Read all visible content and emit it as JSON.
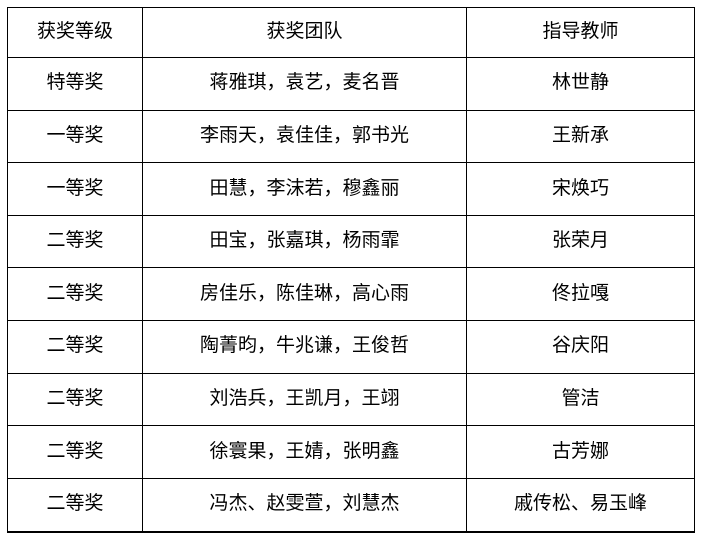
{
  "colors": {
    "background": "#ffffff",
    "border": "#000000",
    "text": "#000000"
  },
  "table": {
    "headers": [
      "获奖等级",
      "获奖团队",
      "指导教师"
    ],
    "rows": [
      {
        "level": "特等奖",
        "team": "蒋雅琪，袁艺，麦名晋",
        "teacher": "林世静"
      },
      {
        "level": "一等奖",
        "team": "李雨天，袁佳佳，郭书光",
        "teacher": "王新承"
      },
      {
        "level": "一等奖",
        "team": "田慧，李沫若，穆鑫丽",
        "teacher": "宋焕巧"
      },
      {
        "level": "二等奖",
        "team": "田宝，张嘉琪，杨雨霏",
        "teacher": "张荣月"
      },
      {
        "level": "二等奖",
        "team": "房佳乐，陈佳琳，高心雨",
        "teacher": "佟拉嘎"
      },
      {
        "level": "二等奖",
        "team": "陶菁昀，牛兆谦，王俊哲",
        "teacher": "谷庆阳"
      },
      {
        "level": "二等奖",
        "team": "刘浩兵，王凯月，王翊",
        "teacher": "管洁"
      },
      {
        "level": "二等奖",
        "team": "徐寰果，王婧，张明鑫",
        "teacher": "古芳娜"
      },
      {
        "level": "二等奖",
        "team": "冯杰、赵雯萱，刘慧杰",
        "teacher": "戚传松、易玉峰"
      }
    ]
  }
}
